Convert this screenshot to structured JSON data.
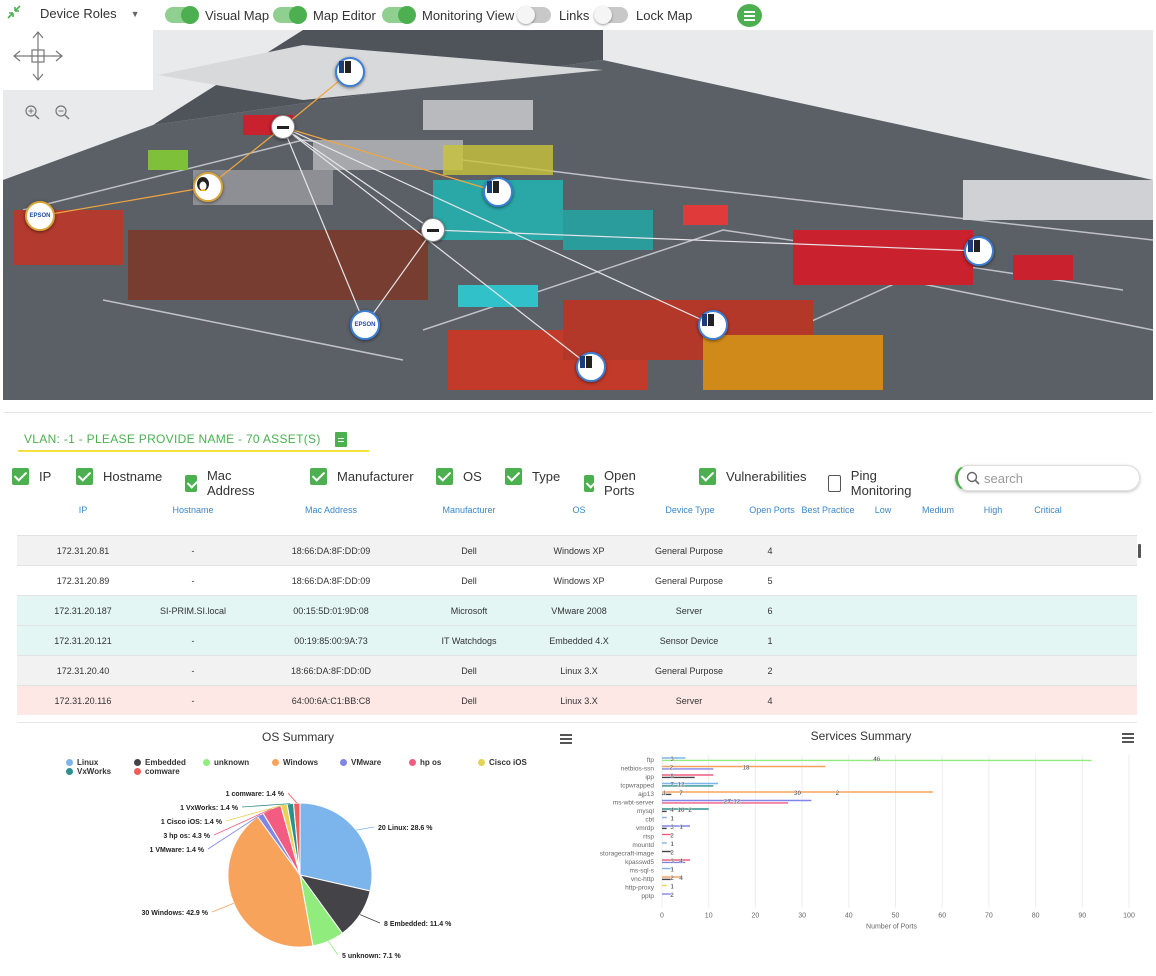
{
  "toolbar": {
    "role_select": "Device Roles",
    "toggles": [
      {
        "label": "Visual Map",
        "on": true
      },
      {
        "label": "Map Editor",
        "on": true
      },
      {
        "label": "Monitoring View",
        "on": true
      },
      {
        "label": "Links",
        "on": false
      },
      {
        "label": "Lock Map",
        "on": false
      }
    ],
    "accent": "#4caf50"
  },
  "map": {
    "nodes": [
      {
        "type": "device-icon"
      },
      {
        "type": "linux-icon"
      },
      {
        "type": "epson-printer",
        "label": "EPSON"
      },
      {
        "type": "device-icon"
      },
      {
        "type": "device-icon"
      },
      {
        "type": "epson-printer",
        "label": "EPSON"
      },
      {
        "type": "device-icon"
      },
      {
        "type": "device-icon"
      },
      {
        "type": "hub"
      },
      {
        "type": "hub"
      }
    ]
  },
  "section": {
    "tab_title": "VLAN: -1 - PLEASE PROVIDE NAME - 70 ASSET(S)"
  },
  "columns_toggle": [
    {
      "label": "IP",
      "checked": true
    },
    {
      "label": "Hostname",
      "checked": true
    },
    {
      "label": "Mac Address",
      "checked": true
    },
    {
      "label": "Manufacturer",
      "checked": true
    },
    {
      "label": "OS",
      "checked": true
    },
    {
      "label": "Type",
      "checked": true
    },
    {
      "label": "Open Ports",
      "checked": true
    },
    {
      "label": "Vulnerabilities",
      "checked": true
    },
    {
      "label": "Ping Monitoring",
      "checked": false
    }
  ],
  "search": {
    "placeholder": "search"
  },
  "table": {
    "headers": [
      "IP",
      "Hostname",
      "Mac Address",
      "Manufacturer",
      "OS",
      "Device Type",
      "Open Ports",
      "Best Practice",
      "Low",
      "Medium",
      "High",
      "Critical"
    ],
    "rows": [
      {
        "cells": [
          "172.31.20.81",
          "-",
          "18:66:DA:8F:DD:09",
          "Dell",
          "Windows XP",
          "General Purpose",
          "4"
        ],
        "color": "#f2f2f2"
      },
      {
        "cells": [
          "172.31.20.89",
          "-",
          "18:66:DA:8F:DD:09",
          "Dell",
          "Windows XP",
          "General Purpose",
          "5"
        ],
        "color": "#ffffff"
      },
      {
        "cells": [
          "172.31.20.187",
          "SI-PRIM.SI.local",
          "00:15:5D:01:9D:08",
          "Microsoft",
          "VMware 2008",
          "Server",
          "6"
        ],
        "color": "#e3f6f4"
      },
      {
        "cells": [
          "172.31.20.121",
          "-",
          "00:19:85:00:9A:73",
          "IT Watchdogs",
          "Embedded 4.X",
          "Sensor Device",
          "1"
        ],
        "color": "#e3f6f4"
      },
      {
        "cells": [
          "172.31.20.40",
          "-",
          "18:66:DA:8F:DD:0D",
          "Dell",
          "Linux 3.X",
          "General Purpose",
          "2"
        ],
        "color": "#f2f2f2"
      },
      {
        "cells": [
          "172.31.20.116",
          "-",
          "64:00:6A:C1:BB:C8",
          "Dell",
          "Linux 3.X",
          "Server",
          "4"
        ],
        "color": "#fde8e6"
      }
    ]
  },
  "chart_data": [
    {
      "type": "pie",
      "title": "OS Summary",
      "legend": [
        {
          "name": "Linux",
          "color": "#7cb5ec"
        },
        {
          "name": "Embedded",
          "color": "#434348"
        },
        {
          "name": "unknown",
          "color": "#90ed7d"
        },
        {
          "name": "Windows",
          "color": "#f7a35c"
        },
        {
          "name": "VMware",
          "color": "#8085e9"
        },
        {
          "name": "hp os",
          "color": "#f15c80"
        },
        {
          "name": "Cisco iOS",
          "color": "#e4d354"
        },
        {
          "name": "VxWorks",
          "color": "#2b908f"
        },
        {
          "name": "comware",
          "color": "#f45b5b"
        }
      ],
      "slices": [
        {
          "name": "Linux",
          "count": 20,
          "pct": 28.6,
          "label": "20 Linux: 28.6 %"
        },
        {
          "name": "Embedded",
          "count": 8,
          "pct": 11.4,
          "label": "8 Embedded: 11.4 %"
        },
        {
          "name": "unknown",
          "count": 5,
          "pct": 7.1,
          "label": "5 unknown: 7.1 %"
        },
        {
          "name": "Windows",
          "count": 30,
          "pct": 42.9,
          "label": "30 Windows: 42.9 %"
        },
        {
          "name": "VMware",
          "count": 1,
          "pct": 1.4,
          "label": "1 VMware: 1.4 %"
        },
        {
          "name": "hp os",
          "count": 3,
          "pct": 4.3,
          "label": "3 hp os: 4.3 %"
        },
        {
          "name": "Cisco iOS",
          "count": 1,
          "pct": 1.4,
          "label": "1 Cisco iOS: 1.4 %"
        },
        {
          "name": "VxWorks",
          "count": 1,
          "pct": 1.4,
          "label": "1 VxWorks: 1.4 %"
        },
        {
          "name": "comware",
          "count": 1,
          "pct": 1.4,
          "label": "1 comware: 1.4 %"
        }
      ]
    },
    {
      "type": "bar",
      "title": "Services Summary",
      "xlabel": "Number of Ports",
      "xlim": [
        0,
        100
      ],
      "xticks": [
        0,
        10,
        20,
        30,
        40,
        50,
        60,
        70,
        80,
        90,
        100
      ],
      "categories": [
        "ftp",
        "netbios-ssn",
        "ipp",
        "tcpwrapped",
        "ajp13",
        "ms-wbt-server",
        "mysql",
        "cbt",
        "vmrdp",
        "rtsp",
        "mountd",
        "storagecraft-image",
        "kpasswd5",
        "ms-sql-s",
        "vnc-http",
        "http-proxy",
        "pptp"
      ],
      "bars": [
        {
          "category": "ftp",
          "values": [
            {
              "v": 5,
              "color": "#7cb5ec"
            },
            {
              "v": 92,
              "color": "#90ed7d"
            }
          ],
          "labels": [
            "3",
            "46"
          ]
        },
        {
          "category": "netbios-ssn",
          "values": [
            {
              "v": 35,
              "color": "#f7a35c"
            },
            {
              "v": 11,
              "color": "#8085e9"
            }
          ],
          "labels": [
            "2",
            "18"
          ]
        },
        {
          "category": "ipp",
          "values": [
            {
              "v": 11,
              "color": "#f15c80"
            },
            {
              "v": 7,
              "color": "#434348"
            }
          ],
          "labels": [
            "8"
          ]
        },
        {
          "category": "tcpwrapped",
          "values": [
            {
              "v": 12,
              "color": "#7cb5ec"
            },
            {
              "v": 11,
              "color": "#2b908f"
            }
          ],
          "labels": [
            "7",
            "12"
          ]
        },
        {
          "category": "ajp13",
          "values": [
            {
              "v": 58,
              "color": "#f7a35c"
            },
            {
              "v": 2,
              "color": "#434348"
            }
          ],
          "labels": [
            "2",
            "7",
            "30",
            "1"
          ]
        },
        {
          "category": "ms-wbt-server",
          "values": [
            {
              "v": 32,
              "color": "#8085e9"
            },
            {
              "v": 27,
              "color": "#f15c80"
            }
          ],
          "labels": [
            "12",
            "27"
          ]
        },
        {
          "category": "mysql",
          "values": [
            {
              "v": 10,
              "color": "#2b908f"
            },
            {
              "v": 1,
              "color": "#434348"
            }
          ],
          "labels": [
            "4",
            "10",
            "2"
          ]
        },
        {
          "category": "cbt",
          "values": [
            {
              "v": 1,
              "color": "#7cb5ec"
            }
          ],
          "labels": [
            "1"
          ]
        },
        {
          "category": "vmrdp",
          "values": [
            {
              "v": 6,
              "color": "#8085e9"
            },
            {
              "v": 1,
              "color": "#434348"
            }
          ],
          "labels": [
            "3",
            "1"
          ]
        },
        {
          "category": "rtsp",
          "values": [
            {
              "v": 2,
              "color": "#f15c80"
            }
          ],
          "labels": [
            "2"
          ]
        },
        {
          "category": "mountd",
          "values": [
            {
              "v": 1,
              "color": "#7cb5ec"
            }
          ],
          "labels": [
            "1"
          ]
        },
        {
          "category": "storagecraft-image",
          "values": [
            {
              "v": 2,
              "color": "#434348"
            }
          ],
          "labels": [
            "2"
          ]
        },
        {
          "category": "kpasswd5",
          "values": [
            {
              "v": 6,
              "color": "#f15c80"
            },
            {
              "v": 5,
              "color": "#8085e9"
            }
          ],
          "labels": [
            "3",
            "4"
          ]
        },
        {
          "category": "ms-sql-s",
          "values": [
            {
              "v": 2,
              "color": "#7cb5ec"
            }
          ],
          "labels": [
            "1"
          ]
        },
        {
          "category": "vnc-http",
          "values": [
            {
              "v": 4,
              "color": "#f7a35c"
            },
            {
              "v": 2,
              "color": "#434348"
            }
          ],
          "labels": [
            "2",
            "4"
          ]
        },
        {
          "category": "http-proxy",
          "values": [
            {
              "v": 1,
              "color": "#e4d354"
            }
          ],
          "labels": [
            "1"
          ]
        },
        {
          "category": "pptp",
          "values": [
            {
              "v": 2,
              "color": "#8085e9"
            }
          ],
          "labels": [
            "2"
          ]
        }
      ]
    }
  ]
}
